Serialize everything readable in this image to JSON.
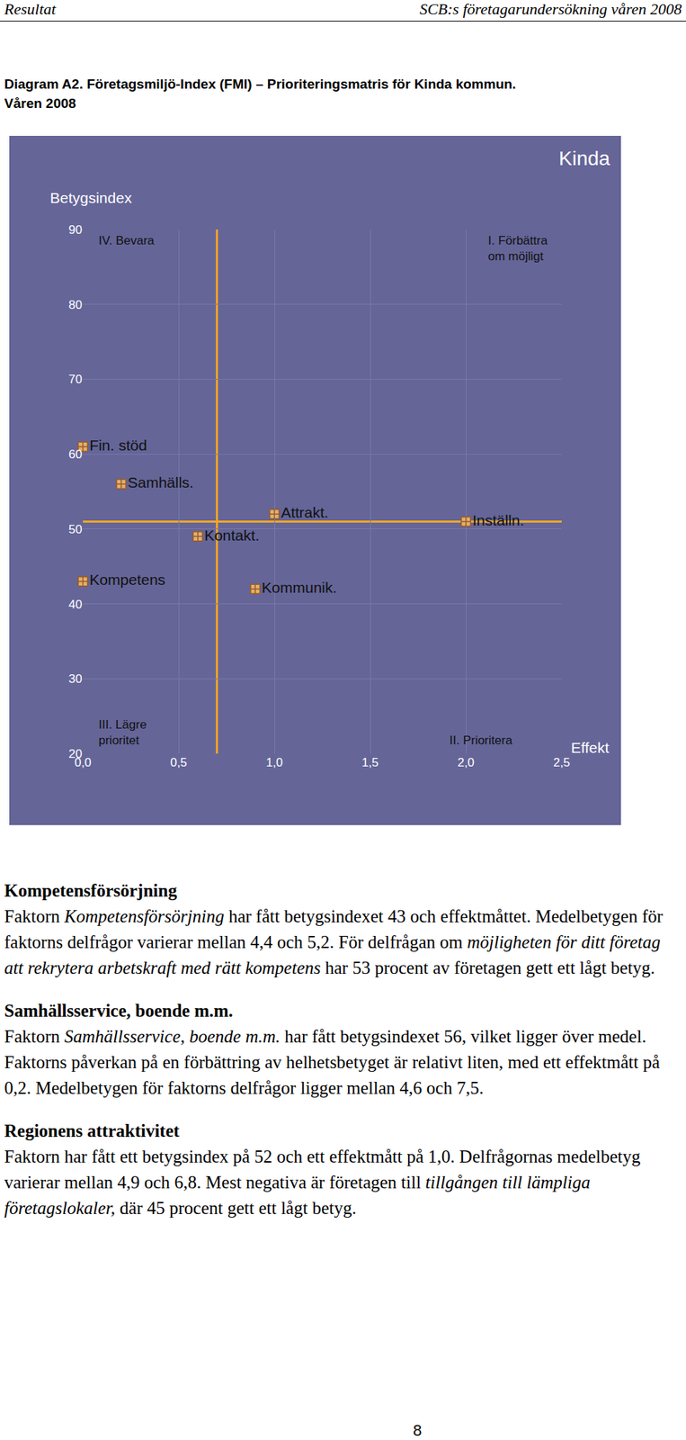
{
  "header": {
    "left": "Resultat",
    "right": "SCB:s företagarundersökning våren 2008"
  },
  "figure_title": [
    "Diagram A2. Företagsmiljö-Index (FMI) – Prioriteringsmatris för Kinda kommun.",
    "Våren 2008"
  ],
  "chart_data": {
    "type": "scatter",
    "title": "Kinda",
    "x_label": "Effekt",
    "y_label": "Betygsindex",
    "labels": [
      "Fin. stöd",
      "Samhälls.",
      "Attrakt.",
      "Kontakt.",
      "Inställn.",
      "Kompetens",
      "Kommunik."
    ],
    "x": [
      0.0,
      0.2,
      1.0,
      0.6,
      2.0,
      0.0,
      0.9
    ],
    "values": [
      61,
      56,
      52,
      49,
      51,
      43,
      42
    ],
    "xlim": [
      0,
      2.5
    ],
    "xticks": [
      {
        "value": 0,
        "label": "0,0"
      },
      {
        "value": 0.5,
        "label": "0,5"
      },
      {
        "value": 1,
        "label": "1,0"
      },
      {
        "value": 1.5,
        "label": "1,5"
      },
      {
        "value": 2,
        "label": "2,0"
      },
      {
        "value": 2.5,
        "label": "2,5"
      }
    ],
    "ylim": [
      20,
      90
    ],
    "yticks": [
      20,
      30,
      40,
      50,
      60,
      70,
      80,
      90
    ],
    "grid": true,
    "marker": "square-cross",
    "color": "#e0b070",
    "reference_lines": {
      "x": 0.7,
      "y": 51,
      "color": "#f5a623"
    },
    "annotations": [
      [
        "IV. Bevara"
      ],
      [
        "I. Förbättra",
        "om möjligt"
      ],
      [
        "III. Lägre",
        "prioritet"
      ],
      [
        "II. Prioritera"
      ]
    ]
  },
  "sections": [
    {
      "heading": "Kompetensförsörjning",
      "text": [
        {
          "text": "Faktorn "
        },
        {
          "text": "Kompetensförsörjning",
          "italic": true
        },
        {
          "text": " har fått betygsindexet 43 och effektmåttet. Medelbetygen för faktorns delfrågor varierar mellan 4,4 och 5,2. För delfrågan om "
        },
        {
          "text": "möjligheten för ditt företag att rekrytera arbetskraft med rätt kompetens",
          "italic": true
        },
        {
          "text": " har 53 procent av företagen gett ett lågt betyg."
        }
      ]
    },
    {
      "heading": "Samhällsservice, boende m.m.",
      "text": [
        {
          "text": "Faktorn "
        },
        {
          "text": "Samhällsservice, boende m.m.",
          "italic": true
        },
        {
          "text": " har fått betygsindexet 56, vilket ligger över medel. Faktorns påverkan på en förbättring av helhetsbetyget är relativt liten, med ett effektmått på 0,2. Medelbetygen för faktorns delfrågor ligger mellan 4,6 och 7,5."
        }
      ]
    },
    {
      "heading": "Regionens attraktivitet",
      "text": [
        {
          "text": "Faktorn har fått ett betygsindex på 52 och ett effektmått på 1,0. Delfrågornas medelbetyg varierar mellan 4,9 och 6,8. Mest negativa är företagen till "
        },
        {
          "text": "tillgången till lämpliga företagslokaler,",
          "italic": true
        },
        {
          "text": " där 45 procent gett ett lågt betyg."
        }
      ]
    }
  ],
  "page_number": "8"
}
